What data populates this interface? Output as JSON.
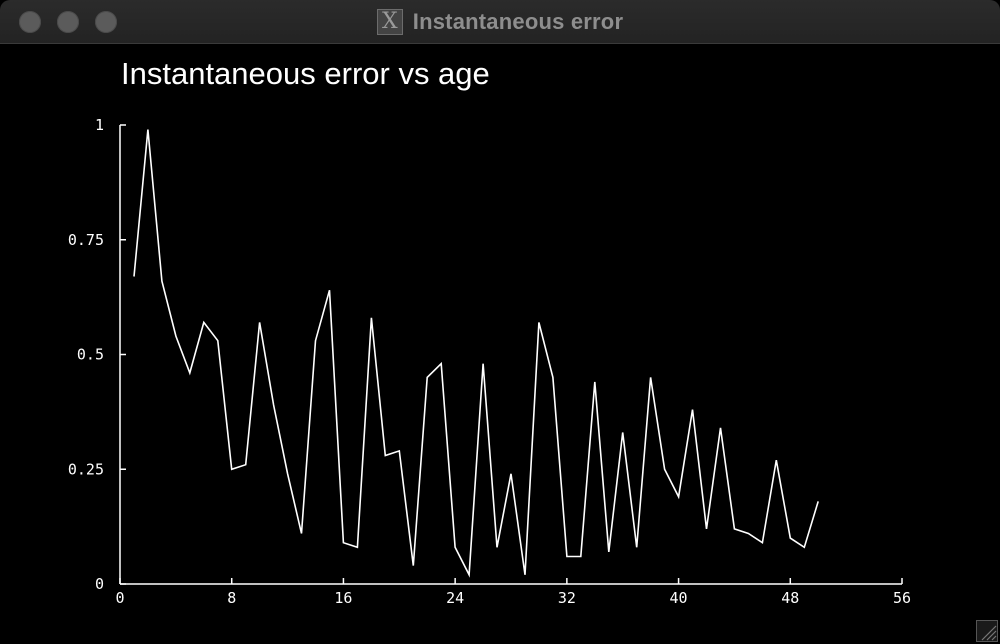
{
  "window": {
    "title": "Instantaneous error",
    "x_icon_glyph": "X"
  },
  "chart_data": {
    "type": "line",
    "title": "Instantaneous error vs age",
    "xlabel": "",
    "ylabel": "",
    "xlim": [
      0,
      56
    ],
    "ylim": [
      0,
      1
    ],
    "x_ticks": [
      0,
      8,
      16,
      24,
      32,
      40,
      48,
      56
    ],
    "x_tick_labels": [
      "0",
      "8",
      "16",
      "24",
      "32",
      "40",
      "48",
      "56"
    ],
    "y_ticks": [
      0,
      0.25,
      0.5,
      0.75,
      1
    ],
    "y_tick_labels": [
      "0",
      "0.25",
      "0.5",
      "0.75",
      "1"
    ],
    "grid": false,
    "color": "#ffffff",
    "series": [
      {
        "x": [
          1,
          2,
          3,
          4,
          5,
          6,
          7,
          8,
          9,
          10,
          11,
          12,
          13,
          14,
          15,
          16,
          17,
          18,
          19,
          20,
          21,
          22,
          23,
          24,
          25,
          26,
          27,
          28,
          29,
          30,
          31,
          32,
          33,
          34,
          35,
          36,
          37,
          38,
          39,
          40,
          41,
          42,
          43,
          44,
          45,
          46,
          47,
          48,
          49,
          50
        ],
        "values": [
          0.67,
          0.99,
          0.66,
          0.54,
          0.46,
          0.57,
          0.53,
          0.25,
          0.26,
          0.57,
          0.39,
          0.24,
          0.11,
          0.53,
          0.64,
          0.09,
          0.08,
          0.58,
          0.28,
          0.29,
          0.04,
          0.45,
          0.48,
          0.08,
          0.02,
          0.48,
          0.08,
          0.24,
          0.02,
          0.57,
          0.45,
          0.06,
          0.06,
          0.44,
          0.07,
          0.33,
          0.08,
          0.45,
          0.25,
          0.19,
          0.38,
          0.12,
          0.34,
          0.12,
          0.11,
          0.09,
          0.27,
          0.1,
          0.08,
          0.18
        ]
      }
    ]
  }
}
